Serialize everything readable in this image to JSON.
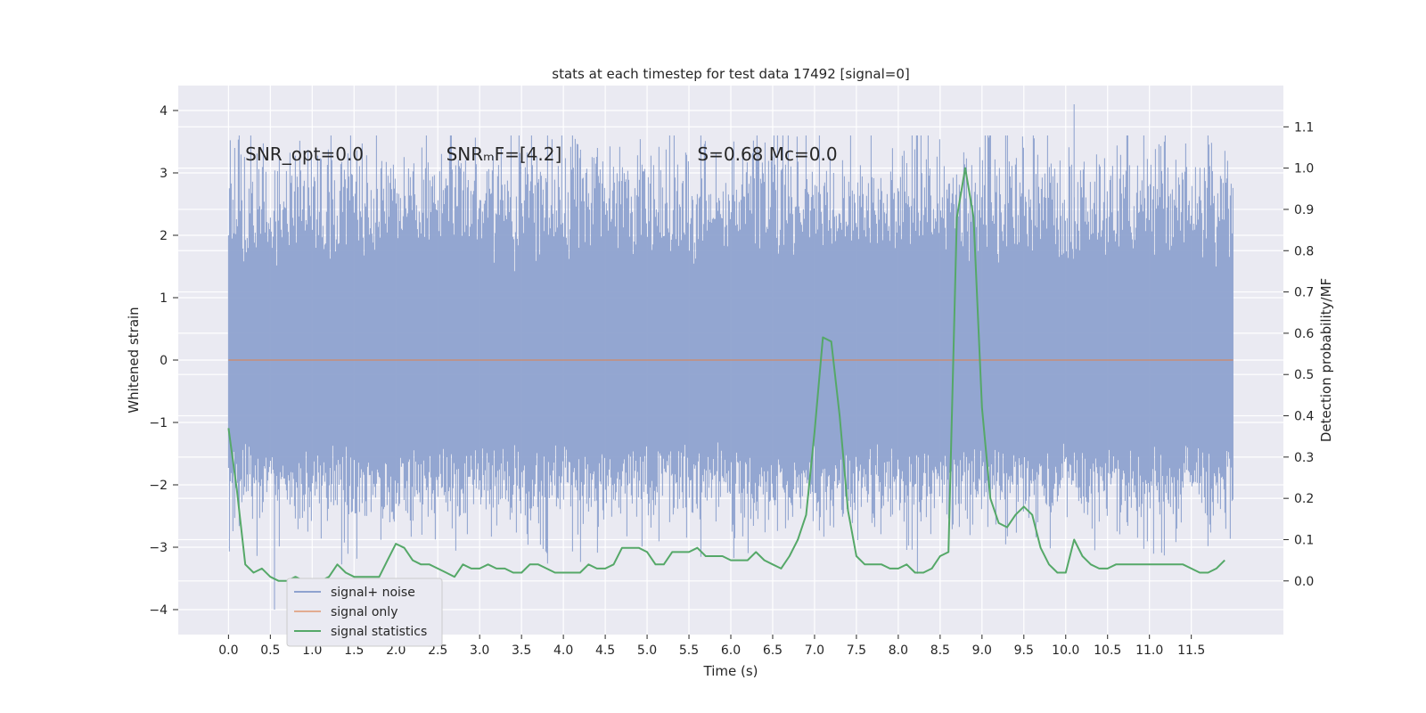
{
  "chart_data": {
    "type": "line",
    "title": "stats at each timestep for test data 17492 [signal=0]",
    "xlabel": "Time (s)",
    "ylabel": "Whitened strain",
    "y2label": "Detection probability/MF",
    "xlim": [
      -0.6,
      12.6
    ],
    "ylim": [
      -4.4,
      4.4
    ],
    "y2lim": [
      -0.13,
      1.2
    ],
    "xticks": [
      0.0,
      0.5,
      1.0,
      1.5,
      2.0,
      2.5,
      3.0,
      3.5,
      4.0,
      4.5,
      5.0,
      5.5,
      6.0,
      6.5,
      7.0,
      7.5,
      8.0,
      8.5,
      9.0,
      9.5,
      10.0,
      10.5,
      11.0,
      11.5
    ],
    "xtick_labels": [
      "0.0",
      "0.5",
      "1.0",
      "1.5",
      "2.0",
      "2.5",
      "3.0",
      "3.5",
      "4.0",
      "4.5",
      "5.0",
      "5.5",
      "6.0",
      "6.5",
      "7.0",
      "7.5",
      "8.0",
      "8.5",
      "9.0",
      "9.5",
      "10.0",
      "10.5",
      "11.0",
      "11.5"
    ],
    "yticks": [
      -4,
      -3,
      -2,
      -1,
      0,
      1,
      2,
      3,
      4
    ],
    "ytick_labels": [
      "−4",
      "−3",
      "−2",
      "−1",
      "0",
      "1",
      "2",
      "3",
      "4"
    ],
    "y2ticks": [
      0.0,
      0.1,
      0.2,
      0.3,
      0.4,
      0.5,
      0.6,
      0.7,
      0.8,
      0.9,
      1.0,
      1.1
    ],
    "y2tick_labels": [
      "0.0",
      "0.1",
      "0.2",
      "0.3",
      "0.4",
      "0.5",
      "0.6",
      "0.7",
      "0.8",
      "0.9",
      "1.0",
      "1.1"
    ],
    "grid": true,
    "legend_position": "lower-left",
    "annotations": [
      {
        "name": "snr-opt",
        "text": "SNR_opt=0.0",
        "x": 0.2,
        "y": 3.2
      },
      {
        "name": "snr-mf",
        "text": "SNRₘF=[4.2]",
        "x": 2.6,
        "y": 3.2
      },
      {
        "name": "s-stat",
        "text": "S=0.68   Mᴄ=0.0",
        "x": 5.6,
        "y": 3.2
      }
    ],
    "series": [
      {
        "name": "signal+ noise",
        "axis": "left",
        "color": "#8ea2cf",
        "style": "noise-band",
        "x_range": [
          0.0,
          12.0
        ],
        "envelope": [
          -2.5,
          2.5
        ],
        "extremes": {
          "max": 4.1,
          "min": -4.0
        }
      },
      {
        "name": "signal only",
        "axis": "left",
        "color": "#dd8452",
        "x": [
          0.0,
          12.0
        ],
        "y": [
          0.0,
          0.0
        ]
      },
      {
        "name": "signal statistics",
        "axis": "right",
        "color": "#55a868",
        "x": [
          0.0,
          0.1,
          0.2,
          0.3,
          0.4,
          0.5,
          0.6,
          0.7,
          0.8,
          0.9,
          1.0,
          1.1,
          1.2,
          1.3,
          1.4,
          1.5,
          1.6,
          1.7,
          1.8,
          1.9,
          2.0,
          2.1,
          2.2,
          2.3,
          2.4,
          2.5,
          2.6,
          2.7,
          2.8,
          2.9,
          3.0,
          3.1,
          3.2,
          3.3,
          3.4,
          3.5,
          3.6,
          3.7,
          3.8,
          3.9,
          4.0,
          4.1,
          4.2,
          4.3,
          4.4,
          4.5,
          4.6,
          4.7,
          4.8,
          4.9,
          5.0,
          5.1,
          5.2,
          5.3,
          5.4,
          5.5,
          5.6,
          5.7,
          5.8,
          5.9,
          6.0,
          6.1,
          6.2,
          6.3,
          6.4,
          6.5,
          6.6,
          6.7,
          6.8,
          6.9,
          7.0,
          7.1,
          7.2,
          7.3,
          7.4,
          7.5,
          7.6,
          7.7,
          7.8,
          7.9,
          8.0,
          8.1,
          8.2,
          8.3,
          8.4,
          8.5,
          8.6,
          8.7,
          8.8,
          8.9,
          9.0,
          9.1,
          9.2,
          9.3,
          9.4,
          9.5,
          9.6,
          9.7,
          9.8,
          9.9,
          10.0,
          10.1,
          10.2,
          10.3,
          10.4,
          10.5,
          10.6,
          10.7,
          10.8,
          10.9,
          11.0,
          11.1,
          11.2,
          11.3,
          11.4,
          11.5,
          11.6,
          11.7,
          11.8,
          11.9
        ],
        "y": [
          0.37,
          0.22,
          0.04,
          0.02,
          0.03,
          0.01,
          0.0,
          0.0,
          0.01,
          0.0,
          0.0,
          0.0,
          0.01,
          0.04,
          0.02,
          0.01,
          0.01,
          0.01,
          0.01,
          0.05,
          0.09,
          0.08,
          0.05,
          0.04,
          0.04,
          0.03,
          0.02,
          0.01,
          0.04,
          0.03,
          0.03,
          0.04,
          0.03,
          0.03,
          0.02,
          0.02,
          0.04,
          0.04,
          0.03,
          0.02,
          0.02,
          0.02,
          0.02,
          0.04,
          0.03,
          0.03,
          0.04,
          0.08,
          0.08,
          0.08,
          0.07,
          0.04,
          0.04,
          0.07,
          0.07,
          0.07,
          0.08,
          0.06,
          0.06,
          0.06,
          0.05,
          0.05,
          0.05,
          0.07,
          0.05,
          0.04,
          0.03,
          0.06,
          0.1,
          0.16,
          0.36,
          0.59,
          0.58,
          0.4,
          0.17,
          0.06,
          0.04,
          0.04,
          0.04,
          0.03,
          0.03,
          0.04,
          0.02,
          0.02,
          0.03,
          0.06,
          0.07,
          0.88,
          1.0,
          0.88,
          0.42,
          0.2,
          0.14,
          0.13,
          0.16,
          0.18,
          0.16,
          0.08,
          0.04,
          0.02,
          0.02,
          0.1,
          0.06,
          0.04,
          0.03,
          0.03,
          0.04,
          0.04,
          0.04,
          0.04,
          0.04,
          0.04,
          0.04,
          0.04,
          0.04,
          0.03,
          0.02,
          0.02,
          0.03,
          0.05
        ]
      }
    ]
  }
}
